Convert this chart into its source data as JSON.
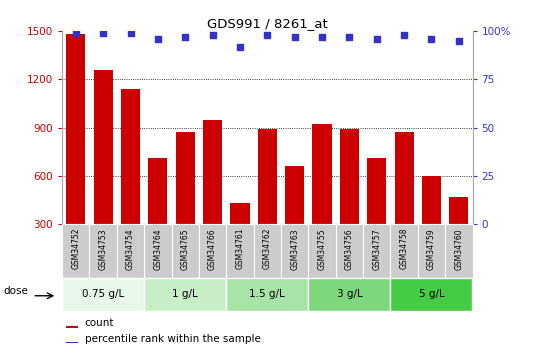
{
  "title": "GDS991 / 8261_at",
  "categories": [
    "GSM34752",
    "GSM34753",
    "GSM34754",
    "GSM34764",
    "GSM34765",
    "GSM34766",
    "GSM34761",
    "GSM34762",
    "GSM34763",
    "GSM34755",
    "GSM34756",
    "GSM34757",
    "GSM34758",
    "GSM34759",
    "GSM34760"
  ],
  "bar_values": [
    1480,
    1260,
    1140,
    710,
    870,
    950,
    430,
    890,
    660,
    920,
    890,
    710,
    870,
    600,
    470
  ],
  "bar_color": "#cc0000",
  "scatter_values": [
    99,
    99,
    99,
    96,
    97,
    98,
    92,
    98,
    97,
    97,
    97,
    96,
    98,
    96,
    95
  ],
  "scatter_color": "#3333cc",
  "ylim_left": [
    300,
    1500
  ],
  "ylim_right": [
    0,
    100
  ],
  "yticks_left": [
    300,
    600,
    900,
    1200,
    1500
  ],
  "yticks_right": [
    0,
    25,
    50,
    75,
    100
  ],
  "dose_groups": [
    {
      "label": "0.75 g/L",
      "indices": [
        0,
        1,
        2
      ],
      "color": "#e8f8e8"
    },
    {
      "label": "1 g/L",
      "indices": [
        3,
        4,
        5
      ],
      "color": "#c8eec8"
    },
    {
      "label": "1.5 g/L",
      "indices": [
        6,
        7,
        8
      ],
      "color": "#a8e4a8"
    },
    {
      "label": "3 g/L",
      "indices": [
        9,
        10,
        11
      ],
      "color": "#7dd87d"
    },
    {
      "label": "5 g/L",
      "indices": [
        12,
        13,
        14
      ],
      "color": "#44cc44"
    }
  ],
  "bar_bg_color": "#cccccc",
  "legend_count_color": "#cc0000",
  "legend_pct_color": "#3333cc",
  "ylabel_left_color": "#cc0000",
  "ylabel_right_color": "#3333cc"
}
